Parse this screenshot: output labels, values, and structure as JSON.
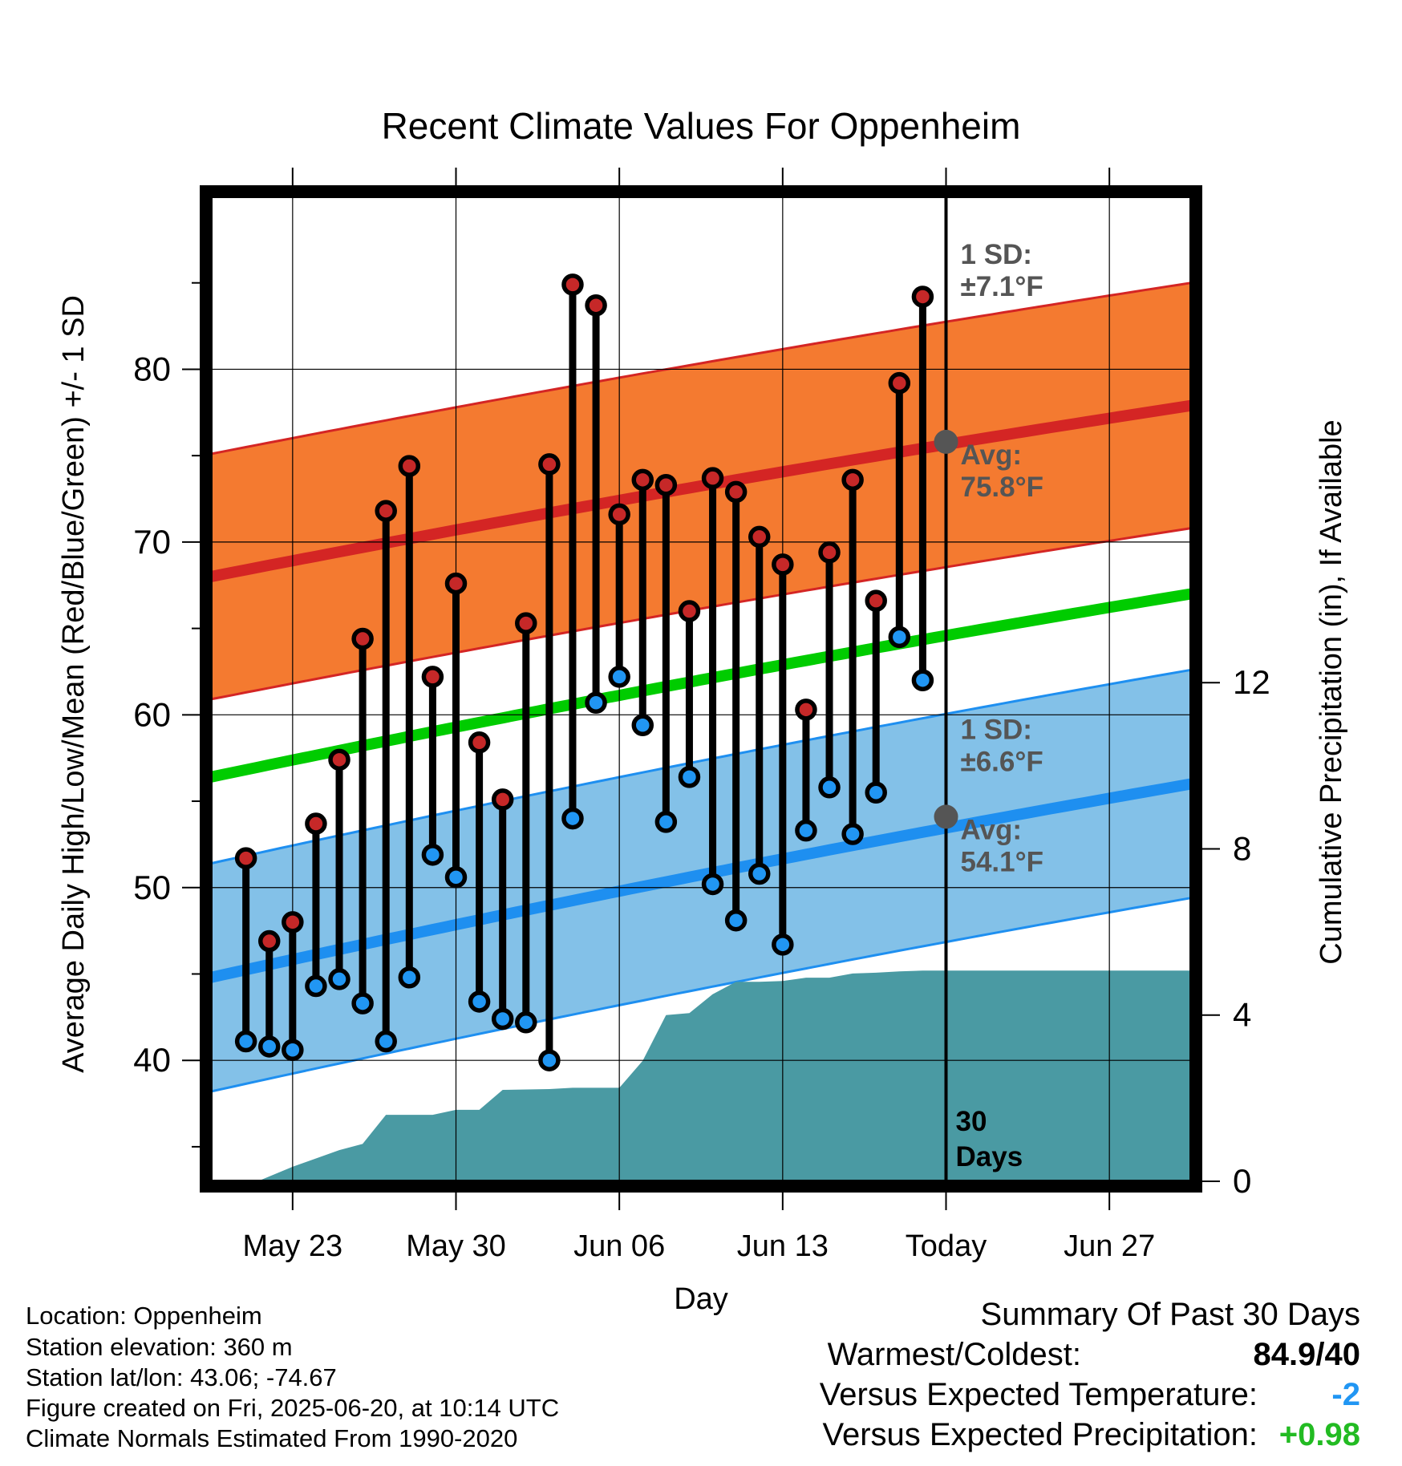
{
  "chart_data": {
    "type": "line",
    "title": "Recent Climate Values For Oppenheim",
    "xlabel": "Day",
    "ylabel": "Average Daily High/Low/Mean (Red/Blue/Green) +/- 1 SD",
    "y2label": "Cumulative Precipitation (in), If Available",
    "ylim": [
      33,
      90
    ],
    "y2lim": [
      0,
      23.7
    ],
    "yticks": [
      40,
      50,
      60,
      70,
      80
    ],
    "y2ticks": [
      0,
      4,
      8,
      12
    ],
    "xlim": [
      -3.5,
      38.5
    ],
    "xticks": [
      {
        "day": 0,
        "label": "May 23"
      },
      {
        "day": 7,
        "label": "May 30"
      },
      {
        "day": 14,
        "label": "Jun 06"
      },
      {
        "day": 21,
        "label": "Jun 13"
      },
      {
        "day": 28,
        "label": "Today"
      },
      {
        "day": 35,
        "label": "Jun 27"
      }
    ],
    "today_day": 28,
    "today_label": "30\nDays",
    "grid": true,
    "daily_high": [
      51.7,
      46.9,
      48.0,
      53.7,
      57.4,
      64.4,
      71.8,
      74.4,
      62.2,
      67.6,
      58.4,
      55.1,
      65.3,
      74.5,
      84.9,
      83.7,
      71.6,
      73.6,
      73.3,
      66.0,
      73.7,
      72.9,
      70.3,
      68.7,
      60.3,
      69.4,
      73.6,
      66.6,
      79.2,
      84.2
    ],
    "daily_low": [
      41.1,
      40.8,
      40.6,
      44.3,
      44.7,
      43.3,
      41.1,
      44.8,
      51.9,
      50.6,
      43.4,
      42.4,
      42.2,
      40.0,
      54.0,
      60.7,
      62.2,
      59.4,
      53.8,
      56.4,
      50.2,
      48.1,
      50.8,
      46.7,
      53.3,
      55.8,
      53.1,
      55.5,
      64.5,
      62.0
    ],
    "daily_start_day": -2,
    "normal_high": {
      "start": 68.0,
      "end": 77.9,
      "sd": 7.1,
      "today_avg": 75.8
    },
    "normal_low": {
      "start": 44.8,
      "end": 56.0,
      "sd": 6.6,
      "today_avg": 54.1
    },
    "normal_mean": {
      "start": 56.4,
      "end": 67.0
    },
    "precip_cumulative": [
      [
        -3.5,
        0.0
      ],
      [
        -1.5,
        0.0
      ],
      [
        0,
        0.35
      ],
      [
        2,
        0.75
      ],
      [
        3,
        0.9
      ],
      [
        4,
        1.6
      ],
      [
        6,
        1.6
      ],
      [
        7,
        1.72
      ],
      [
        8,
        1.72
      ],
      [
        9,
        2.2
      ],
      [
        11,
        2.22
      ],
      [
        12,
        2.25
      ],
      [
        13,
        2.25
      ],
      [
        14,
        2.25
      ],
      [
        15,
        2.9
      ],
      [
        16,
        4.0
      ],
      [
        17,
        4.05
      ],
      [
        18,
        4.5
      ],
      [
        19,
        4.8
      ],
      [
        20,
        4.8
      ],
      [
        21,
        4.82
      ],
      [
        22,
        4.9
      ],
      [
        23,
        4.9
      ],
      [
        24,
        5.0
      ],
      [
        25,
        5.02
      ],
      [
        26,
        5.05
      ],
      [
        27,
        5.07
      ],
      [
        28,
        5.07
      ],
      [
        38.5,
        5.07
      ]
    ],
    "annotations": {
      "high_sd": "1 SD:\n±7.1°F",
      "high_avg": "Avg:\n75.8°F",
      "low_sd": "1 SD:\n±6.6°F",
      "low_avg": "Avg:\n54.1°F"
    },
    "colors": {
      "high_band": "#f47a30",
      "high_line": "#d42524",
      "low_band": "#83c1e8",
      "low_line": "#1e8ff0",
      "mean_line": "#00cc00",
      "precip": "#4a9aa3",
      "high_marker": "#c62828",
      "low_marker": "#2196f3",
      "avg_dot": "#555555"
    }
  },
  "footer": {
    "location": "Location: Oppenheim",
    "elevation": "Station elevation: 360 m",
    "latlon": "Station lat/lon: 43.06; -74.67",
    "created": "Figure created on Fri, 2025-06-20, at 10:14 UTC",
    "normals": "Climate Normals Estimated From 1990-2020"
  },
  "summary": {
    "heading": "Summary Of Past 30 Days",
    "warmest_label": "Warmest/Coldest:",
    "warmest_value": "84.9/40",
    "temp_label": "Versus Expected Temperature:",
    "temp_value": "-2",
    "temp_color": "#2196f3",
    "precip_label": "Versus Expected Precipitation:",
    "precip_value": "+0.98",
    "precip_color": "#22bb22"
  }
}
